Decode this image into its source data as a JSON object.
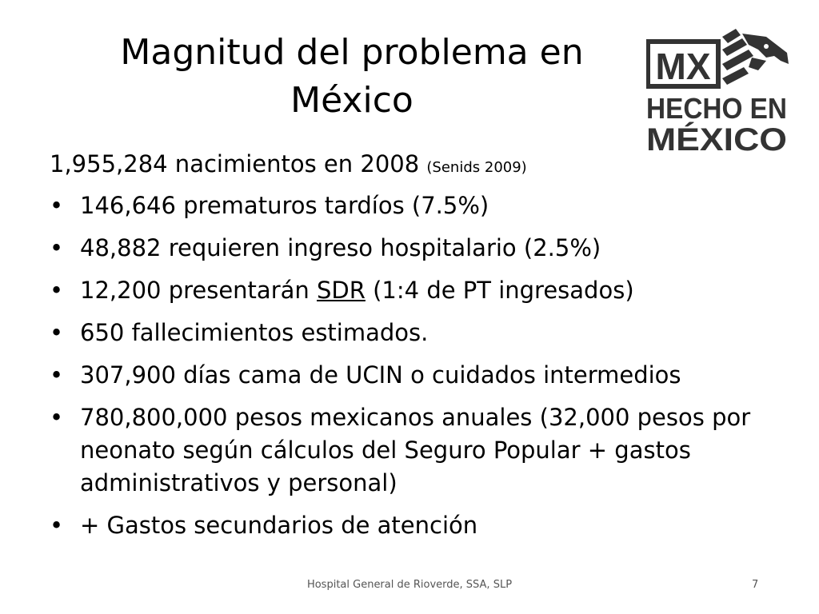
{
  "slide": {
    "title_line1": "Magnitud del problema en",
    "title_line2": "México",
    "lead_text": "1,955,284  nacimientos en 2008 ",
    "lead_source": "(Senids 2009)",
    "bullets": [
      {
        "text": "146,646 prematuros tardíos (7.5%)"
      },
      {
        "text": "48,882 requieren ingreso hospitalario (2.5%)"
      },
      {
        "pre": "12,200 presentarán ",
        "underlined": "SDR",
        "post": " (1:4 de PT ingresados)"
      },
      {
        "text": "650 fallecimientos estimados."
      },
      {
        "text": "307,900 días cama de UCIN o cuidados intermedios"
      },
      {
        "text": "780,800,000 pesos mexicanos anuales (32,000 pesos por neonato según cálculos del Seguro Popular + gastos administrativos y personal)"
      },
      {
        "text": "+ Gastos secundarios de atención"
      }
    ],
    "footer": "Hospital General de Rioverde, SSA, SLP",
    "page_number": "7"
  },
  "logo": {
    "line1": "MX",
    "line2": "HECHO EN",
    "line3": "MÉXICO",
    "icon": "eagle-head-icon",
    "color": "#333333"
  }
}
